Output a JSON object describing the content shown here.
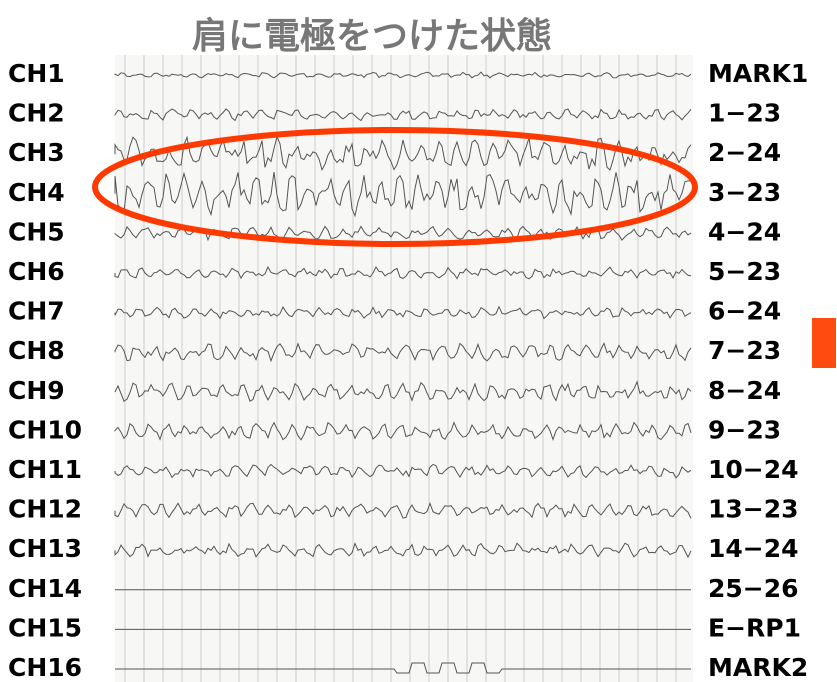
{
  "title": "肩に電極をつけた状態",
  "channels": [
    {
      "name": "CH1",
      "montage": "MARK1"
    },
    {
      "name": "CH2",
      "montage": "1−23"
    },
    {
      "name": "CH3",
      "montage": "2−24"
    },
    {
      "name": "CH4",
      "montage": "3−23"
    },
    {
      "name": "CH5",
      "montage": "4−24"
    },
    {
      "name": "CH6",
      "montage": "5−23"
    },
    {
      "name": "CH7",
      "montage": "6−24"
    },
    {
      "name": "CH8",
      "montage": "7−23"
    },
    {
      "name": "CH9",
      "montage": "8−24"
    },
    {
      "name": "CH10",
      "montage": "9−23"
    },
    {
      "name": "CH11",
      "montage": "10−24"
    },
    {
      "name": "CH12",
      "montage": "13−23"
    },
    {
      "name": "CH13",
      "montage": "14−24"
    },
    {
      "name": "CH14",
      "montage": "25−26"
    },
    {
      "name": "CH15",
      "montage": "E−RP1"
    },
    {
      "name": "CH16",
      "montage": "MARK2"
    }
  ]
}
